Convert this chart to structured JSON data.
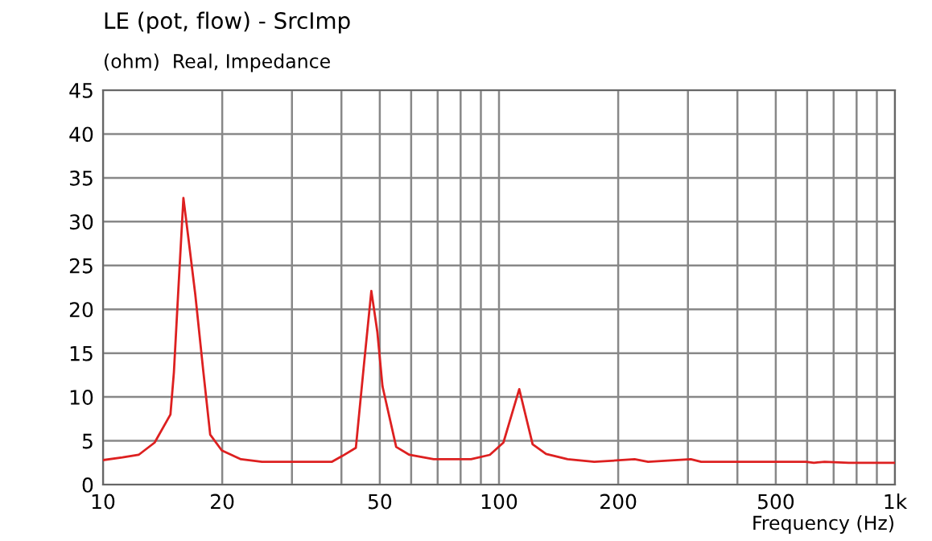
{
  "chart_data": {
    "type": "line",
    "title": "LE (pot, flow) - SrcImp",
    "subtitle": "(ohm)  Real, Impedance",
    "xlabel": "Frequency (Hz)",
    "log": "x",
    "xlim": [
      10,
      1000
    ],
    "ylim": [
      0,
      45
    ],
    "yticks": [
      0,
      5,
      10,
      15,
      20,
      25,
      30,
      35,
      40,
      45
    ],
    "xticks": [
      10,
      20,
      {
        "value": 30,
        "label": null
      },
      {
        "value": 40,
        "label": null
      },
      50,
      {
        "value": 60,
        "label": null
      },
      {
        "value": 70,
        "label": null
      },
      {
        "value": 80,
        "label": null
      },
      {
        "value": 90,
        "label": null
      },
      100,
      200,
      {
        "value": 300,
        "label": null
      },
      {
        "value": 400,
        "label": null
      },
      500,
      {
        "value": 600,
        "label": null
      },
      {
        "value": 700,
        "label": null
      },
      {
        "value": 800,
        "label": null
      },
      {
        "value": 900,
        "label": null
      },
      {
        "value": 1000,
        "label": "1k"
      }
    ],
    "grid": true,
    "marker": "none",
    "line_style": "solid",
    "series": [
      {
        "color": "#dd2020",
        "x": [
          10,
          11.2,
          12.3,
          13.5,
          14.8,
          15.1,
          15.5,
          15.96,
          16.4,
          17.1,
          17.9,
          18.65,
          19.95,
          22.3,
          25.2,
          29.9,
          37.8,
          40.3,
          43.5,
          45.6,
          47.6,
          49.3,
          50.8,
          55.0,
          59.4,
          68.4,
          85,
          94.8,
          102.6,
          112.5,
          121.6,
          131.5,
          149,
          174,
          220,
          238,
          305,
          324,
          596,
          624,
          664,
          764,
          1000
        ],
        "values": [
          2.8,
          3.1,
          3.4,
          4.8,
          8.0,
          12.8,
          22.3,
          32.7,
          28.4,
          21.7,
          13.1,
          5.7,
          3.9,
          2.9,
          2.6,
          2.6,
          2.6,
          3.3,
          4.2,
          13.7,
          22.1,
          17.4,
          11.2,
          4.3,
          3.4,
          2.9,
          2.9,
          3.4,
          4.8,
          10.9,
          4.6,
          3.5,
          2.9,
          2.6,
          2.9,
          2.6,
          2.9,
          2.6,
          2.6,
          2.5,
          2.6,
          2.5,
          2.5
        ]
      }
    ]
  }
}
